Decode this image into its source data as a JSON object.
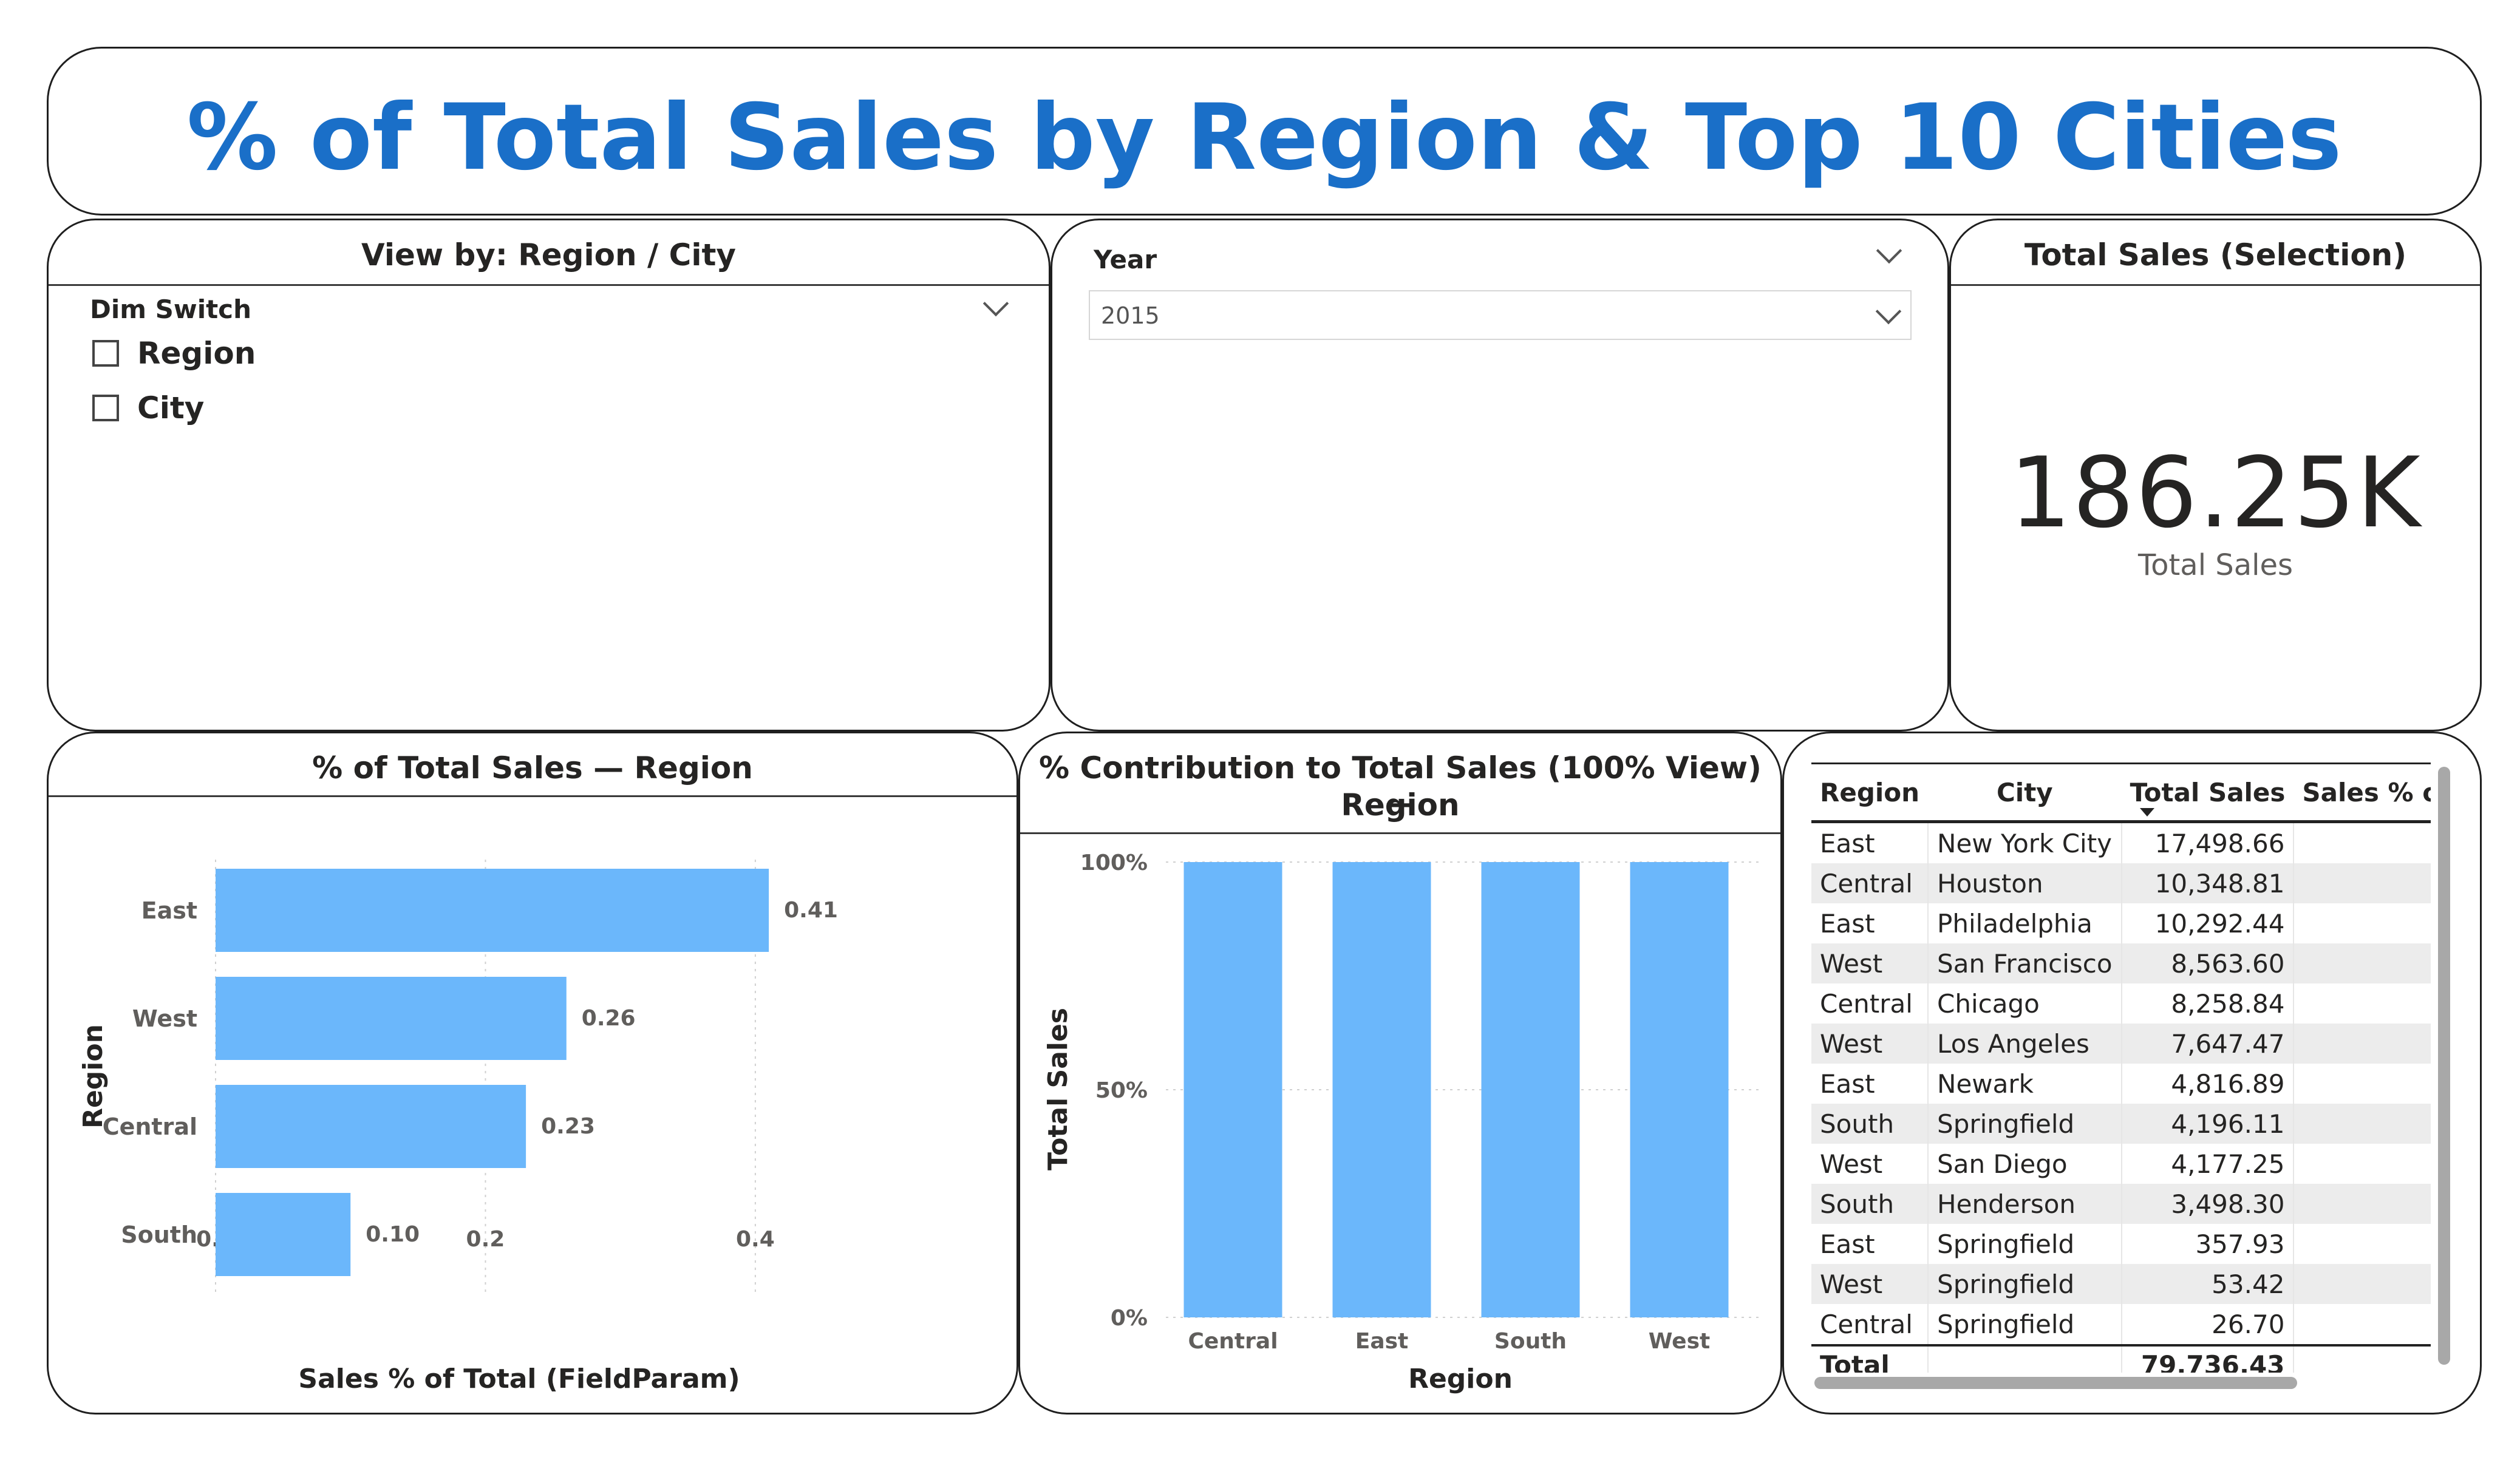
{
  "header": {
    "title": "% of Total Sales by Region & Top 10 Cities"
  },
  "dim_slicer": {
    "card_title": "View by: Region / City",
    "label": "Dim Switch",
    "options": [
      "Region",
      "City"
    ]
  },
  "year_slicer": {
    "label": "Year",
    "selected": "2015"
  },
  "kpi": {
    "card_title": "Total Sales (Selection)",
    "value": "186.25K",
    "label": "Total Sales"
  },
  "bar_card": {
    "title": "% of Total Sales — Region"
  },
  "col_card": {
    "title_line1": "% Contribution to Total Sales (100% View) —",
    "title_line2": "Region"
  },
  "colors": {
    "bar": "#6bb7fb",
    "title": "#1a6fc8"
  },
  "chart_data": [
    {
      "type": "bar",
      "orientation": "horizontal",
      "categories": [
        "East",
        "West",
        "Central",
        "South"
      ],
      "values": [
        0.41,
        0.26,
        0.23,
        0.1
      ],
      "data_labels": [
        "0.41",
        "0.26",
        "0.23",
        "0.10"
      ],
      "xlabel": "Sales % of Total (FieldParam)",
      "ylabel": "Region",
      "xlim": [
        0,
        0.45
      ],
      "x_ticks": [
        "0.0",
        "0.2",
        "0.4"
      ],
      "x_tick_values": [
        0,
        0.2,
        0.4
      ],
      "grid": true
    },
    {
      "type": "bar",
      "stacking": "100%",
      "categories": [
        "Central",
        "East",
        "South",
        "West"
      ],
      "values": [
        100,
        100,
        100,
        100
      ],
      "xlabel": "Region",
      "ylabel": "Total Sales",
      "ylim": [
        0,
        100
      ],
      "y_ticks": [
        "0%",
        "50%",
        "100%"
      ],
      "y_tick_values": [
        0,
        50,
        100
      ],
      "grid": true
    }
  ],
  "table": {
    "columns": [
      "Region",
      "City",
      "Total Sales",
      "Sales % of Tota"
    ],
    "rows": [
      [
        "East",
        "New York City",
        "17,498.66",
        ""
      ],
      [
        "Central",
        "Houston",
        "10,348.81",
        ""
      ],
      [
        "East",
        "Philadelphia",
        "10,292.44",
        ""
      ],
      [
        "West",
        "San Francisco",
        "8,563.60",
        ""
      ],
      [
        "Central",
        "Chicago",
        "8,258.84",
        ""
      ],
      [
        "West",
        "Los Angeles",
        "7,647.47",
        ""
      ],
      [
        "East",
        "Newark",
        "4,816.89",
        ""
      ],
      [
        "South",
        "Springfield",
        "4,196.11",
        ""
      ],
      [
        "West",
        "San Diego",
        "4,177.25",
        ""
      ],
      [
        "South",
        "Henderson",
        "3,498.30",
        ""
      ],
      [
        "East",
        "Springfield",
        "357.93",
        ""
      ],
      [
        "West",
        "Springfield",
        "53.42",
        ""
      ],
      [
        "Central",
        "Springfield",
        "26.70",
        ""
      ]
    ],
    "total": [
      "Total",
      "",
      "79,736.43",
      ""
    ]
  }
}
